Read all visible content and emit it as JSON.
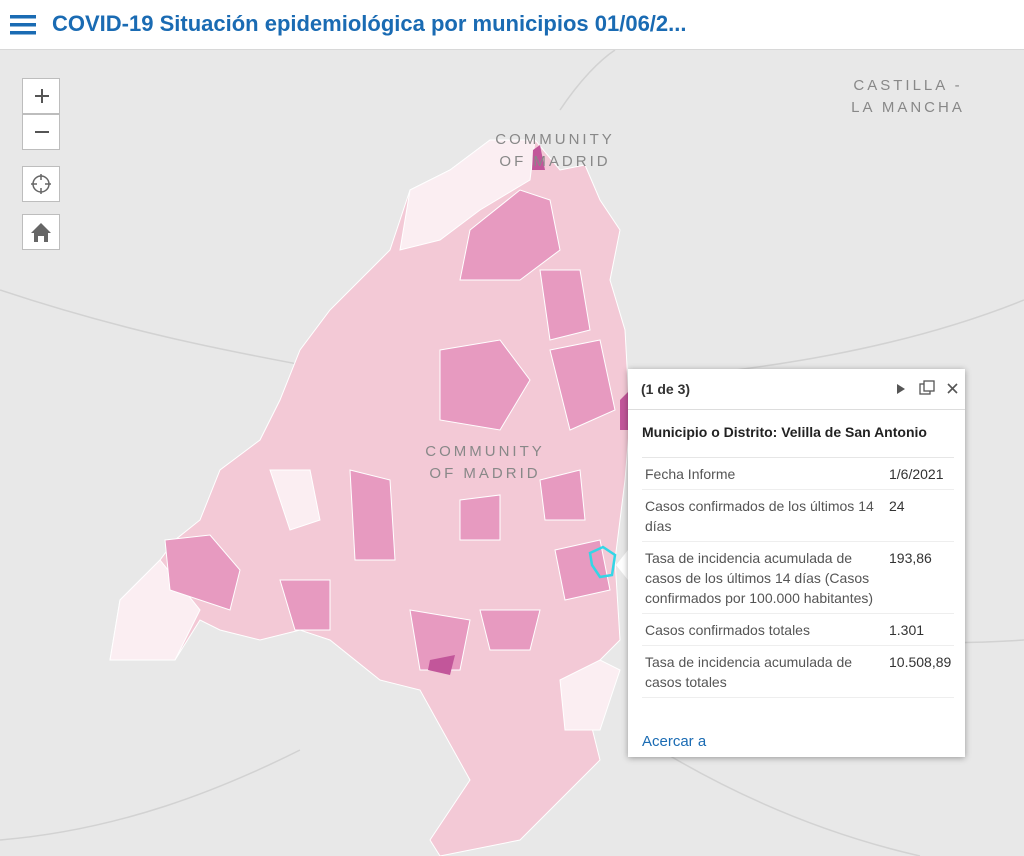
{
  "header": {
    "title": "COVID-19 Situación epidemiológica por municipios 01/06/2..."
  },
  "map_labels": [
    {
      "lines": [
        "CASTILLA -",
        "LA MANCHA"
      ]
    },
    {
      "lines": [
        "COMMUNITY",
        "OF MADRID"
      ]
    },
    {
      "lines": [
        "COMMUNITY",
        "OF MADRID"
      ]
    }
  ],
  "popup": {
    "counter": "(1 de 3)",
    "heading": "Municipio o Distrito: Velilla de San Antonio",
    "rows": [
      [
        "Fecha Informe",
        "1/6/2021"
      ],
      [
        "Casos confirmados de los últimos 14 días",
        "24"
      ],
      [
        "Tasa de incidencia acumulada de casos de los últimos 14 días (Casos confirmados por 100.000 habitantes)",
        "193,86"
      ],
      [
        "Casos confirmados totales",
        "1.301"
      ],
      [
        "Tasa de incidencia acumulada de casos totales",
        "10.508,89"
      ]
    ],
    "link": "Acercar a"
  }
}
